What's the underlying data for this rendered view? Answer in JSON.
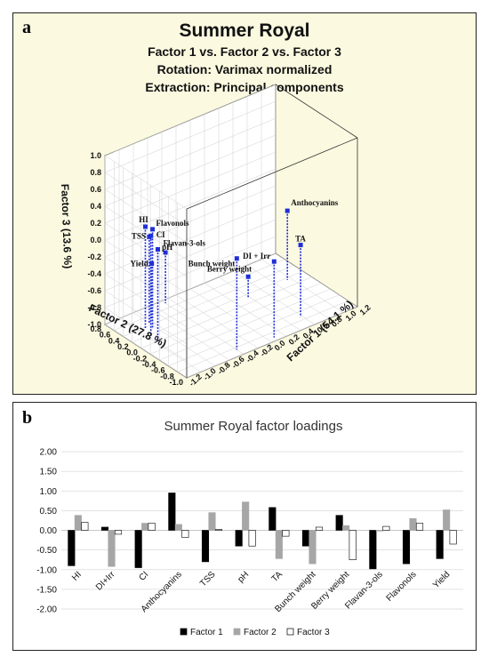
{
  "panel_a": {
    "letter": "a",
    "title": "Summer Royal",
    "subtitle1": "Factor 1 vs. Factor 2 vs. Factor 3",
    "subtitle2": "Rotation: Varimax normalized",
    "subtitle3": "Extraction: Principal components",
    "bg_color": "#fbf9e0",
    "point_color": "#1f2fd6"
  },
  "panel_b": {
    "letter": "b",
    "colors": {
      "factor1": "#000000",
      "factor2": "#a6a6a6",
      "factor3": "#ffffff"
    }
  },
  "chart_data": [
    {
      "type": "scatter3d",
      "title": "Summer Royal",
      "subtitle": [
        "Factor 1 vs. Factor 2 vs. Factor 3",
        "Rotation: Varimax normalized",
        "Extraction: Principal components"
      ],
      "xlabel": "Factor 1 (54.1 %)",
      "ylabel": "Factor 2 (27.8 %)",
      "zlabel": "Factor 3 (13.6 %)",
      "xlim": [
        -1.2,
        1.2
      ],
      "ylim": [
        -1.0,
        0.8
      ],
      "zlim": [
        -1.0,
        1.0
      ],
      "x_ticks": [
        "-1.2",
        "-1.0",
        "-0.8",
        "-0.6",
        "-0.4",
        "-0.2",
        "0.0",
        "0.2",
        "0.4",
        "0.6",
        "0.8",
        "1.0",
        "1.2"
      ],
      "y_ticks": [
        "0.8",
        "0.6",
        "0.4",
        "0.2",
        "0.0",
        "-0.2",
        "-0.4",
        "-0.6",
        "-0.8",
        "-1.0"
      ],
      "z_ticks": [
        "1.0",
        "0.8",
        "0.6",
        "0.4",
        "0.2",
        "0.0",
        "-0.2",
        "-0.4",
        "-0.6",
        "-0.8",
        "-1.0"
      ],
      "points": [
        {
          "name": "HI",
          "x": -0.9,
          "y": 0.38,
          "z": 0.2
        },
        {
          "name": "DI + Irr",
          "x": 0.08,
          "y": -0.92,
          "z": -0.1
        },
        {
          "name": "CI",
          "x": -0.95,
          "y": 0.18,
          "z": 0.18
        },
        {
          "name": "Anthocyanins",
          "x": 0.95,
          "y": 0.15,
          "z": -0.18
        },
        {
          "name": "TSS",
          "x": -0.8,
          "y": 0.45,
          "z": 0.02
        },
        {
          "name": "pH",
          "x": -0.4,
          "y": 0.72,
          "z": -0.4
        },
        {
          "name": "TA",
          "x": 0.58,
          "y": -0.72,
          "z": -0.15
        },
        {
          "name": "Bunch weight",
          "x": -0.4,
          "y": -0.85,
          "z": 0.08
        },
        {
          "name": "Berry weight",
          "x": 0.38,
          "y": 0.12,
          "z": -0.75
        },
        {
          "name": "Flavan-3-ols",
          "x": -0.98,
          "y": -0.02,
          "z": 0.1
        },
        {
          "name": "Flavonols",
          "x": -0.85,
          "y": 0.3,
          "z": 0.18
        },
        {
          "name": "Yield",
          "x": -0.72,
          "y": 0.52,
          "z": -0.35
        }
      ]
    },
    {
      "type": "bar",
      "title": "Summer Royal factor loadings",
      "categories": [
        "HI",
        "DI+Irr",
        "CI",
        "Anthocyanins",
        "TSS",
        "pH",
        "TA",
        "Bunch weight",
        "Berry weight",
        "Flavan-3-ols",
        "Flavonols",
        "Yield"
      ],
      "series": [
        {
          "name": "Factor 1",
          "values": [
            -0.9,
            0.08,
            -0.95,
            0.95,
            -0.8,
            -0.4,
            0.58,
            -0.4,
            0.38,
            -0.98,
            -0.85,
            -0.72
          ]
        },
        {
          "name": "Factor 2",
          "values": [
            0.38,
            -0.92,
            0.18,
            0.15,
            0.45,
            0.72,
            -0.72,
            -0.85,
            0.12,
            -0.02,
            0.3,
            0.52
          ]
        },
        {
          "name": "Factor 3",
          "values": [
            0.2,
            -0.1,
            0.18,
            -0.18,
            0.02,
            -0.4,
            -0.15,
            0.08,
            -0.75,
            0.1,
            0.18,
            -0.35
          ]
        }
      ],
      "ylim": [
        -2.0,
        2.0
      ],
      "y_ticks": [
        "2.00",
        "1.50",
        "1.00",
        "0.50",
        "0.00",
        "-0.50",
        "-1.00",
        "-1.50",
        "-2.00"
      ],
      "grid": true,
      "legend": "bottom"
    }
  ]
}
